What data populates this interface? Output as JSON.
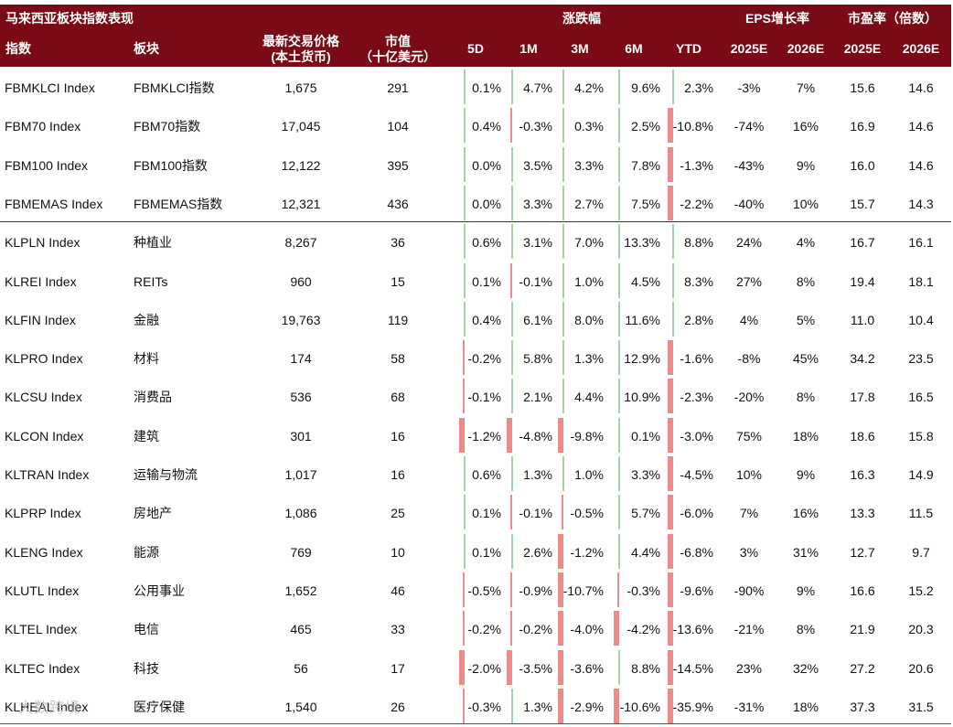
{
  "title": "马来西亚板块指数表现",
  "group_headers": {
    "performance": "涨跌幅",
    "eps_growth": "EPS增长率",
    "pe": "市盈率（倍数）"
  },
  "columns": {
    "index": "指数",
    "sector": "板块",
    "price_line1": "最新交易价格",
    "price_line2": "(本土货币)",
    "mcap_line1": "市值",
    "mcap_line2": "（十亿美元）",
    "d5": "5D",
    "m1": "1M",
    "m3": "3M",
    "m6": "6M",
    "ytd": "YTD",
    "eps2025": "2025E",
    "eps2026": "2026E",
    "pe2025": "2025E",
    "pe2026": "2026E"
  },
  "rows": [
    {
      "index": "FBMKLCI Index",
      "sector": "FBMKLCI指数",
      "price": "1,675",
      "mcap": "291",
      "d5": "0.1%",
      "m1": "4.7%",
      "m3": "4.2%",
      "m6": "9.6%",
      "ytd": "2.3%",
      "eps2025": "-3%",
      "eps2026": "7%",
      "pe2025": "15.6",
      "pe2026": "14.6"
    },
    {
      "index": "FBM70 Index",
      "sector": "FBM70指数",
      "price": "17,045",
      "mcap": "104",
      "d5": "0.4%",
      "m1": "-0.3%",
      "m3": "0.3%",
      "m6": "2.5%",
      "ytd": "-10.8%",
      "eps2025": "-74%",
      "eps2026": "16%",
      "pe2025": "16.9",
      "pe2026": "14.6"
    },
    {
      "index": "FBM100 Index",
      "sector": "FBM100指数",
      "price": "12,122",
      "mcap": "395",
      "d5": "0.0%",
      "m1": "3.5%",
      "m3": "3.3%",
      "m6": "7.8%",
      "ytd": "-1.3%",
      "eps2025": "-43%",
      "eps2026": "9%",
      "pe2025": "16.0",
      "pe2026": "14.6"
    },
    {
      "index": "FBMEMAS Index",
      "sector": "FBMEMAS指数",
      "price": "12,321",
      "mcap": "436",
      "d5": "0.0%",
      "m1": "3.3%",
      "m3": "2.7%",
      "m6": "7.5%",
      "ytd": "-2.2%",
      "eps2025": "-40%",
      "eps2026": "10%",
      "pe2025": "15.7",
      "pe2026": "14.3"
    },
    {
      "index": "KLPLN Index",
      "sector": "种植业",
      "price": "8,267",
      "mcap": "36",
      "d5": "0.6%",
      "m1": "3.1%",
      "m3": "7.0%",
      "m6": "13.3%",
      "ytd": "8.8%",
      "eps2025": "24%",
      "eps2026": "4%",
      "pe2025": "16.7",
      "pe2026": "16.1"
    },
    {
      "index": "KLREI Index",
      "sector": "REITs",
      "price": "960",
      "mcap": "15",
      "d5": "0.1%",
      "m1": "-0.1%",
      "m3": "1.0%",
      "m6": "4.5%",
      "ytd": "8.3%",
      "eps2025": "27%",
      "eps2026": "8%",
      "pe2025": "19.4",
      "pe2026": "18.1"
    },
    {
      "index": "KLFIN Index",
      "sector": "金融",
      "price": "19,763",
      "mcap": "119",
      "d5": "0.4%",
      "m1": "6.1%",
      "m3": "8.0%",
      "m6": "11.6%",
      "ytd": "2.8%",
      "eps2025": "4%",
      "eps2026": "5%",
      "pe2025": "11.0",
      "pe2026": "10.4"
    },
    {
      "index": "KLPRO Index",
      "sector": "材料",
      "price": "174",
      "mcap": "58",
      "d5": "-0.2%",
      "m1": "5.8%",
      "m3": "1.3%",
      "m6": "12.9%",
      "ytd": "-1.6%",
      "eps2025": "-8%",
      "eps2026": "45%",
      "pe2025": "34.2",
      "pe2026": "23.5"
    },
    {
      "index": "KLCSU Index",
      "sector": "消费品",
      "price": "536",
      "mcap": "68",
      "d5": "-0.1%",
      "m1": "2.1%",
      "m3": "4.4%",
      "m6": "10.9%",
      "ytd": "-2.3%",
      "eps2025": "-20%",
      "eps2026": "8%",
      "pe2025": "17.8",
      "pe2026": "16.5"
    },
    {
      "index": "KLCON Index",
      "sector": "建筑",
      "price": "301",
      "mcap": "16",
      "d5": "-1.2%",
      "m1": "-4.8%",
      "m3": "-9.8%",
      "m6": "0.1%",
      "ytd": "-3.0%",
      "eps2025": "75%",
      "eps2026": "18%",
      "pe2025": "18.6",
      "pe2026": "15.8"
    },
    {
      "index": "KLTRAN Index",
      "sector": "运输与物流",
      "price": "1,017",
      "mcap": "16",
      "d5": "0.6%",
      "m1": "1.3%",
      "m3": "1.0%",
      "m6": "3.3%",
      "ytd": "-4.5%",
      "eps2025": "10%",
      "eps2026": "9%",
      "pe2025": "16.3",
      "pe2026": "14.9"
    },
    {
      "index": "KLPRP Index",
      "sector": "房地产",
      "price": "1,086",
      "mcap": "25",
      "d5": "0.1%",
      "m1": "-0.1%",
      "m3": "-0.5%",
      "m6": "5.7%",
      "ytd": "-6.0%",
      "eps2025": "7%",
      "eps2026": "16%",
      "pe2025": "13.3",
      "pe2026": "11.5"
    },
    {
      "index": "KLENG Index",
      "sector": "能源",
      "price": "769",
      "mcap": "10",
      "d5": "0.1%",
      "m1": "2.6%",
      "m3": "-1.2%",
      "m6": "4.4%",
      "ytd": "-6.8%",
      "eps2025": "3%",
      "eps2026": "31%",
      "pe2025": "12.7",
      "pe2026": "9.7"
    },
    {
      "index": "KLUTL Index",
      "sector": "公用事业",
      "price": "1,652",
      "mcap": "46",
      "d5": "-0.5%",
      "m1": "-0.9%",
      "m3": "-10.7%",
      "m6": "-0.3%",
      "ytd": "-9.6%",
      "eps2025": "-90%",
      "eps2026": "9%",
      "pe2025": "16.6",
      "pe2026": "15.2"
    },
    {
      "index": "KLTEL Index",
      "sector": "电信",
      "price": "465",
      "mcap": "33",
      "d5": "-0.2%",
      "m1": "-0.2%",
      "m3": "-4.0%",
      "m6": "-4.2%",
      "ytd": "-13.6%",
      "eps2025": "-21%",
      "eps2026": "8%",
      "pe2025": "21.9",
      "pe2026": "20.3"
    },
    {
      "index": "KLTEC Index",
      "sector": "科技",
      "price": "56",
      "mcap": "17",
      "d5": "-2.0%",
      "m1": "-3.5%",
      "m3": "-3.6%",
      "m6": "8.8%",
      "ytd": "-14.5%",
      "eps2025": "23%",
      "eps2026": "32%",
      "pe2025": "27.2",
      "pe2026": "20.6"
    },
    {
      "index": "KLHEAL Index",
      "sector": "医疗保健",
      "price": "1,540",
      "mcap": "26",
      "d5": "-0.3%",
      "m1": "1.3%",
      "m3": "-2.9%",
      "m6": "-10.6%",
      "ytd": "-35.9%",
      "eps2025": "-31%",
      "eps2026": "18%",
      "pe2025": "37.3",
      "pe2026": "31.5"
    }
  ],
  "watermark": "大数跨境",
  "colors": {
    "header_bg": "#7a0a16",
    "bar_positive": "#9fd4a8",
    "bar_negative": "#ef8a8a"
  }
}
